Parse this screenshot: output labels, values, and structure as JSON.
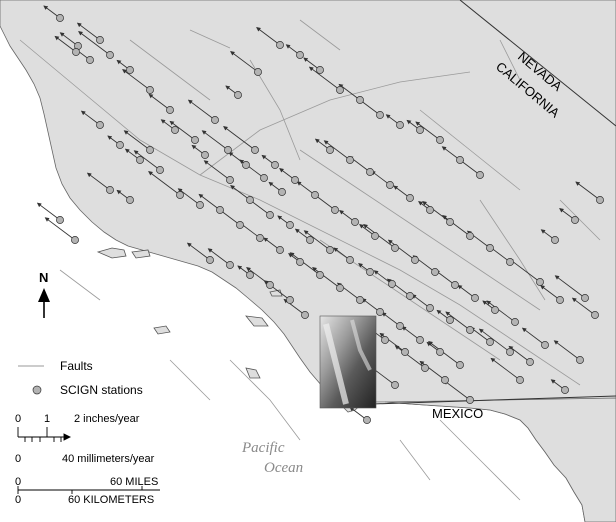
{
  "map": {
    "labels": {
      "nevada": "NEVADA",
      "california": "CALIFORNIA",
      "mexico": "MEXICO",
      "ocean_line1": "Pacific",
      "ocean_line2": "Ocean",
      "north": "N"
    },
    "legend": {
      "faults": "Faults",
      "stations": "SCIGN stations"
    },
    "scales": {
      "velocity_in_0": "0",
      "velocity_in_1": "1",
      "velocity_in_label": "2 inches/year",
      "velocity_mm_0": "0",
      "velocity_mm_label": "40 millimeters/year",
      "dist_mi_0": "0",
      "dist_mi_label": "60 MILES",
      "dist_km_0": "0",
      "dist_km_label": "60 KILOMETERS"
    },
    "colors": {
      "land": "#dedede",
      "ocean": "#ffffff",
      "fault": "#9a9a9a",
      "station": "#b3b3b3",
      "vector": "#333333"
    },
    "icons": [
      "north-arrow-icon",
      "station-icon",
      "fault-line-icon",
      "velocity-vector-icon"
    ]
  }
}
